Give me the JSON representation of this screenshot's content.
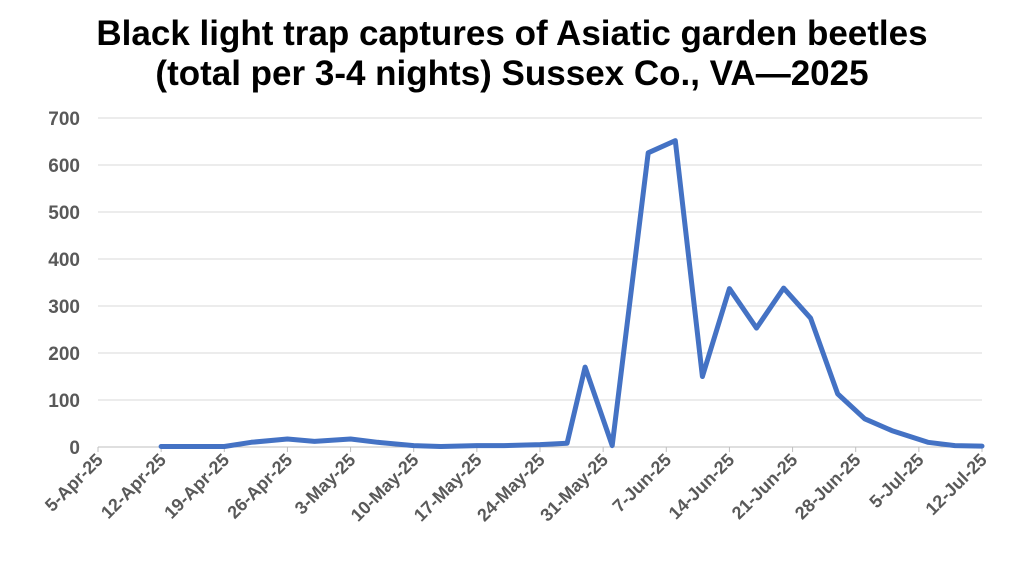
{
  "chart_data": {
    "type": "line",
    "title_lines": [
      "Black light trap captures of Asiatic garden beetles",
      "(total per 3-4 nights) Sussex Co., VA—2025"
    ],
    "xlabel": "",
    "ylabel": "",
    "ylim": [
      0,
      700
    ],
    "yticks": [
      "0",
      "100",
      "200",
      "300",
      "400",
      "500",
      "600",
      "700"
    ],
    "xlim": [
      "2025-04-05",
      "2025-07-12"
    ],
    "xticks": [
      {
        "date": "2025-04-05",
        "label": "5-Apr-25"
      },
      {
        "date": "2025-04-12",
        "label": "12-Apr-25"
      },
      {
        "date": "2025-04-19",
        "label": "19-Apr-25"
      },
      {
        "date": "2025-04-26",
        "label": "26-Apr-25"
      },
      {
        "date": "2025-05-03",
        "label": "3-May-25"
      },
      {
        "date": "2025-05-10",
        "label": "10-May-25"
      },
      {
        "date": "2025-05-17",
        "label": "17-May-25"
      },
      {
        "date": "2025-05-24",
        "label": "24-May-25"
      },
      {
        "date": "2025-05-31",
        "label": "31-May-25"
      },
      {
        "date": "2025-06-07",
        "label": "7-Jun-25"
      },
      {
        "date": "2025-06-14",
        "label": "14-Jun-25"
      },
      {
        "date": "2025-06-21",
        "label": "21-Jun-25"
      },
      {
        "date": "2025-06-28",
        "label": "28-Jun-25"
      },
      {
        "date": "2025-07-05",
        "label": "5-Jul-25"
      },
      {
        "date": "2025-07-12",
        "label": "12-Jul-25"
      }
    ],
    "grid": true,
    "legend": false,
    "series": [
      {
        "color": "#4472C4",
        "x": [
          "2025-04-12",
          "2025-04-15",
          "2025-04-19",
          "2025-04-22",
          "2025-04-26",
          "2025-04-29",
          "2025-05-03",
          "2025-05-06",
          "2025-05-10",
          "2025-05-13",
          "2025-05-17",
          "2025-05-20",
          "2025-05-24",
          "2025-05-27",
          "2025-05-29",
          "2025-06-01",
          "2025-06-05",
          "2025-06-08",
          "2025-06-11",
          "2025-06-14",
          "2025-06-17",
          "2025-06-20",
          "2025-06-23",
          "2025-06-26",
          "2025-06-29",
          "2025-07-02",
          "2025-07-06",
          "2025-07-09",
          "2025-07-12"
        ],
        "y": [
          1,
          1,
          1,
          10,
          17,
          12,
          17,
          10,
          3,
          1,
          3,
          3,
          5,
          8,
          170,
          3,
          626,
          652,
          150,
          337,
          253,
          338,
          274,
          113,
          60,
          35,
          10,
          3,
          2
        ]
      }
    ]
  }
}
